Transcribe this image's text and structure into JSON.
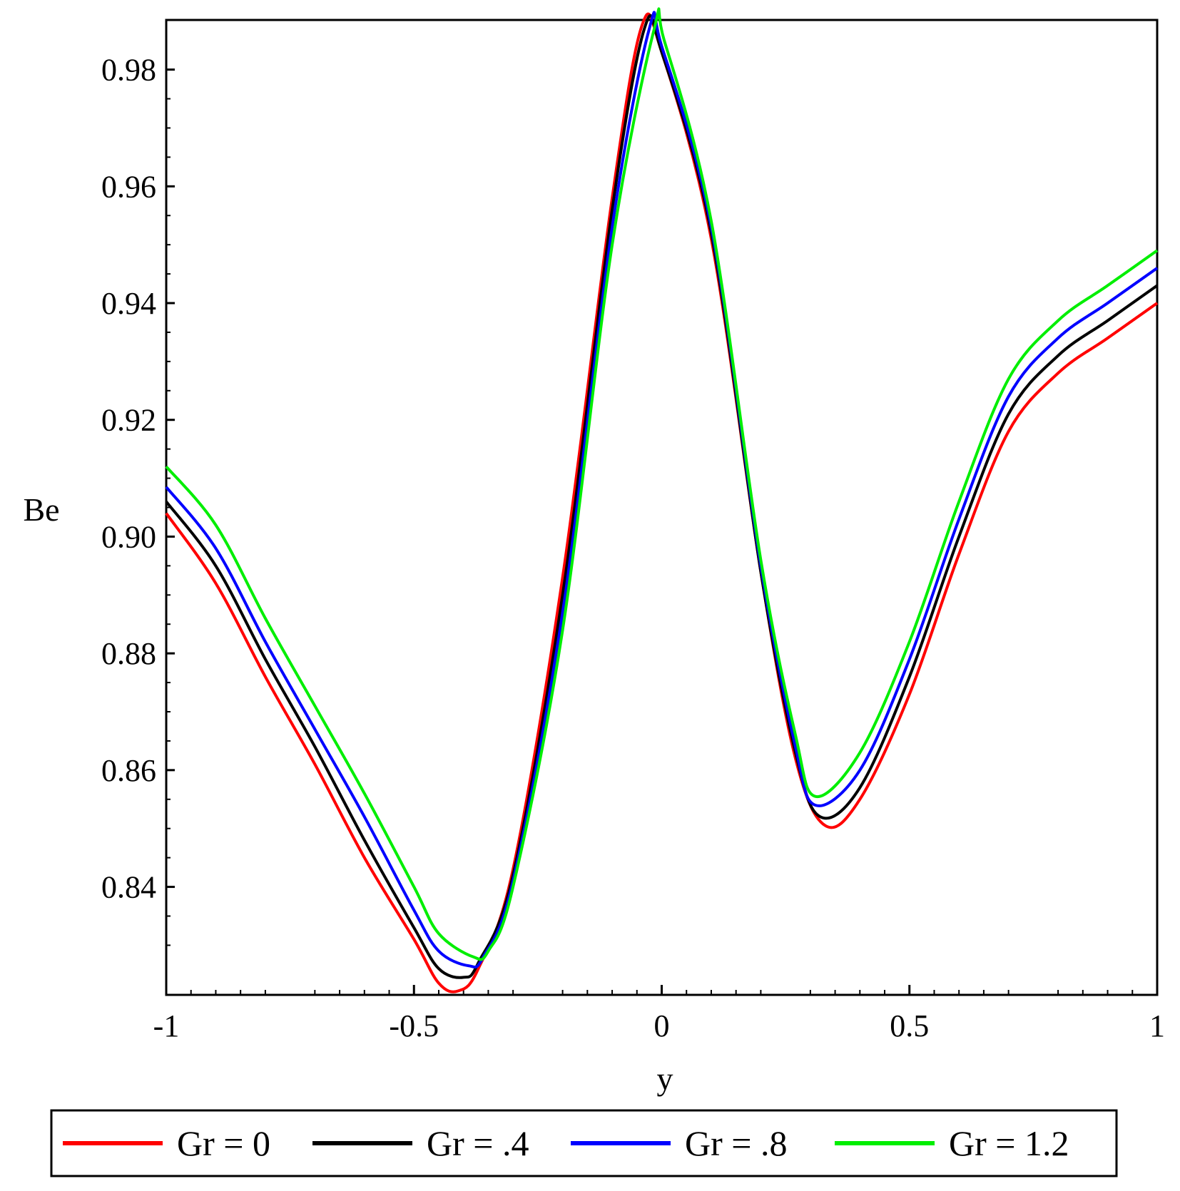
{
  "chart_data": {
    "type": "line",
    "title": "",
    "xlabel": "y",
    "ylabel": "Be",
    "xlim": [
      -1,
      1
    ],
    "ylim": [
      0.8215,
      0.9885
    ],
    "grid": false,
    "legend_position": "bottom",
    "x_ticks": [
      {
        "value": -1,
        "label": "-1"
      },
      {
        "value": -0.5,
        "label": "-0.5"
      },
      {
        "value": 0,
        "label": "0"
      },
      {
        "value": 0.5,
        "label": "0.5"
      },
      {
        "value": 1,
        "label": "1"
      }
    ],
    "y_ticks": [
      {
        "value": 0.84,
        "label": "0.84"
      },
      {
        "value": 0.86,
        "label": "0.86"
      },
      {
        "value": 0.88,
        "label": "0.88"
      },
      {
        "value": 0.9,
        "label": "0.90"
      },
      {
        "value": 0.92,
        "label": "0.92"
      },
      {
        "value": 0.94,
        "label": "0.94"
      },
      {
        "value": 0.96,
        "label": "0.96"
      },
      {
        "value": 0.98,
        "label": "0.98"
      }
    ],
    "series": [
      {
        "name": "Gr = 0",
        "color": "#ff0000",
        "points": [
          [
            -1,
            0.904
          ],
          [
            -0.9,
            0.892
          ],
          [
            -0.8,
            0.876
          ],
          [
            -0.7,
            0.861
          ],
          [
            -0.6,
            0.845
          ],
          [
            -0.5,
            0.831
          ],
          [
            -0.45,
            0.8235
          ],
          [
            -0.41,
            0.8222
          ],
          [
            -0.37,
            0.826
          ],
          [
            -0.3,
            0.843
          ],
          [
            -0.2,
            0.893
          ],
          [
            -0.1,
            0.958
          ],
          [
            -0.04,
            0.9875
          ],
          [
            0,
            0.983
          ],
          [
            0.1,
            0.951
          ],
          [
            0.2,
            0.894
          ],
          [
            0.27,
            0.862
          ],
          [
            0.33,
            0.8505
          ],
          [
            0.4,
            0.855
          ],
          [
            0.5,
            0.873
          ],
          [
            0.6,
            0.897
          ],
          [
            0.7,
            0.918
          ],
          [
            0.8,
            0.928
          ],
          [
            0.9,
            0.934
          ],
          [
            1,
            0.94
          ]
        ]
      },
      {
        "name": "Gr = .4",
        "color": "#000000",
        "points": [
          [
            -1,
            0.906
          ],
          [
            -0.9,
            0.895
          ],
          [
            -0.8,
            0.879
          ],
          [
            -0.7,
            0.864
          ],
          [
            -0.6,
            0.848
          ],
          [
            -0.5,
            0.833
          ],
          [
            -0.45,
            0.826
          ],
          [
            -0.4,
            0.8245
          ],
          [
            -0.37,
            0.827
          ],
          [
            -0.3,
            0.842
          ],
          [
            -0.2,
            0.89
          ],
          [
            -0.1,
            0.956
          ],
          [
            -0.035,
            0.987
          ],
          [
            0,
            0.983
          ],
          [
            0.1,
            0.952
          ],
          [
            0.2,
            0.894
          ],
          [
            0.27,
            0.863
          ],
          [
            0.32,
            0.852
          ],
          [
            0.4,
            0.857
          ],
          [
            0.5,
            0.876
          ],
          [
            0.6,
            0.9
          ],
          [
            0.7,
            0.921
          ],
          [
            0.8,
            0.931
          ],
          [
            0.9,
            0.937
          ],
          [
            1,
            0.943
          ]
        ]
      },
      {
        "name": "Gr = .8",
        "color": "#0000ff",
        "points": [
          [
            -1,
            0.9085
          ],
          [
            -0.9,
            0.898
          ],
          [
            -0.8,
            0.882
          ],
          [
            -0.7,
            0.867
          ],
          [
            -0.6,
            0.852
          ],
          [
            -0.5,
            0.836
          ],
          [
            -0.45,
            0.829
          ],
          [
            -0.39,
            0.8265
          ],
          [
            -0.36,
            0.828
          ],
          [
            -0.3,
            0.841
          ],
          [
            -0.2,
            0.887
          ],
          [
            -0.1,
            0.953
          ],
          [
            -0.025,
            0.987
          ],
          [
            0,
            0.984
          ],
          [
            0.1,
            0.953
          ],
          [
            0.2,
            0.895
          ],
          [
            0.27,
            0.864
          ],
          [
            0.31,
            0.854
          ],
          [
            0.4,
            0.86
          ],
          [
            0.5,
            0.879
          ],
          [
            0.6,
            0.903
          ],
          [
            0.7,
            0.924
          ],
          [
            0.8,
            0.934
          ],
          [
            0.9,
            0.94
          ],
          [
            1,
            0.946
          ]
        ]
      },
      {
        "name": "Gr = 1.2",
        "color": "#00ee00",
        "points": [
          [
            -1,
            0.912
          ],
          [
            -0.9,
            0.902
          ],
          [
            -0.8,
            0.886
          ],
          [
            -0.7,
            0.871
          ],
          [
            -0.6,
            0.856
          ],
          [
            -0.5,
            0.84
          ],
          [
            -0.45,
            0.832
          ],
          [
            -0.38,
            0.828
          ],
          [
            -0.35,
            0.829
          ],
          [
            -0.3,
            0.84
          ],
          [
            -0.2,
            0.884
          ],
          [
            -0.1,
            0.95
          ],
          [
            -0.015,
            0.987
          ],
          [
            0.005,
            0.985
          ],
          [
            0.1,
            0.954
          ],
          [
            0.2,
            0.896
          ],
          [
            0.27,
            0.866
          ],
          [
            0.31,
            0.8555
          ],
          [
            0.4,
            0.863
          ],
          [
            0.5,
            0.882
          ],
          [
            0.6,
            0.906
          ],
          [
            0.7,
            0.927
          ],
          [
            0.8,
            0.937
          ],
          [
            0.9,
            0.943
          ],
          [
            1,
            0.949
          ]
        ]
      }
    ]
  }
}
